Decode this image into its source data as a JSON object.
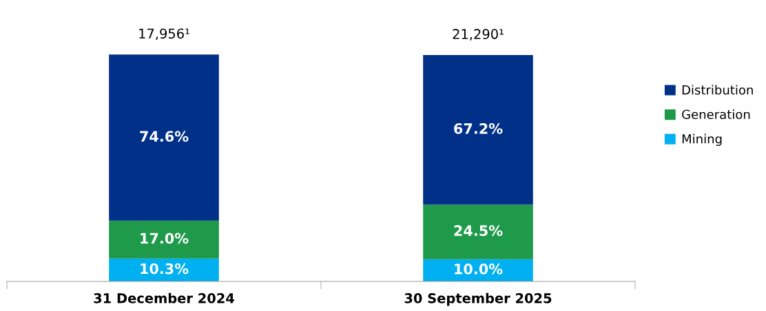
{
  "chart_data": {
    "type": "bar",
    "stacked": true,
    "categories": [
      "31 December 2024",
      "30 September 2025"
    ],
    "series": [
      {
        "name": "Mining",
        "color": "#00b0f0",
        "values": [
          10.3,
          10.0
        ],
        "value_labels": [
          "10.3%",
          "10.0%"
        ]
      },
      {
        "name": "Generation",
        "color": "#1e9a4a",
        "values": [
          17.0,
          24.5
        ],
        "value_labels": [
          "17.0%",
          "24.5%"
        ]
      },
      {
        "name": "Distribution",
        "color": "#003087",
        "values": [
          74.6,
          67.2
        ],
        "value_labels": [
          "74.6%",
          "67.2%"
        ]
      }
    ],
    "annotations": [
      {
        "text": "17,956¹",
        "x": "31 December 2024",
        "y": 101.9
      },
      {
        "text": "21,290¹",
        "x": "30 September 2025",
        "y": 101.7
      }
    ],
    "legend": "right",
    "grid": false
  }
}
